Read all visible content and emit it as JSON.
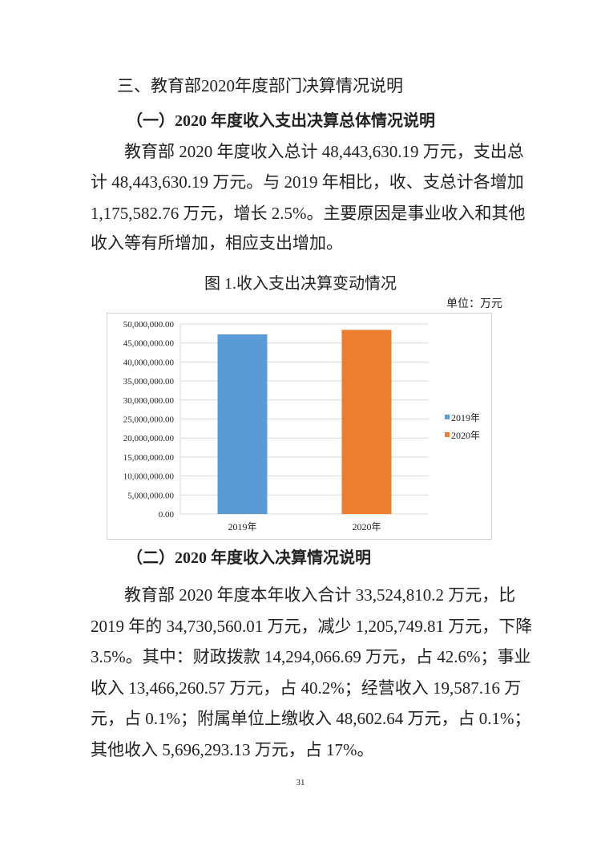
{
  "section_title": "三、教育部2020年度部门决算情况说明",
  "sub1": {
    "title": "（一）2020 年度收入支出决算总体情况说明",
    "lines": [
      "　　教育部 2020 年度收入总计 48,443,630.19 万元，支出总",
      "计 48,443,630.19 万元。与 2019 年相比，收、支总计各增加",
      "1,175,582.76 万元，增长 2.5%。主要原因是事业收入和其他",
      "收入等有所增加，相应支出增加。"
    ]
  },
  "figure": {
    "caption": "图 1.收入支出决算变动情况",
    "unit": "单位：万元"
  },
  "chart_data": {
    "type": "bar",
    "categories": [
      "2019年",
      "2020年"
    ],
    "values": [
      47268047.43,
      48443630.19
    ],
    "colors": [
      "#5b9bd5",
      "#ed7d31"
    ],
    "legend": [
      "2019年",
      "2020年"
    ],
    "legend_position": "right",
    "ylim": [
      0,
      50000000
    ],
    "yticks": [
      "0.00",
      "5,000,000.00",
      "10,000,000.00",
      "15,000,000.00",
      "20,000,000.00",
      "25,000,000.00",
      "30,000,000.00",
      "35,000,000.00",
      "40,000,000.00",
      "45,000,000.00",
      "50,000,000.00"
    ],
    "grid": true
  },
  "sub2": {
    "title": "（二）2020 年度收入决算情况说明",
    "lines": [
      "　　教育部 2020 年度本年收入合计 33,524,810.2 万元，比",
      "2019 年的 34,730,560.01 万元，减少 1,205,749.81 万元，下降",
      "3.5%。其中：财政拨款 14,294,066.69 万元，占 42.6%；事业",
      "收入 13,466,260.57 万元，占 40.2%；经营收入 19,587.16 万",
      "元，占 0.1%；附属单位上缴收入 48,602.64 万元，占 0.1%；",
      "其他收入 5,696,293.13 万元，占 17%。"
    ]
  },
  "page_number": "31"
}
